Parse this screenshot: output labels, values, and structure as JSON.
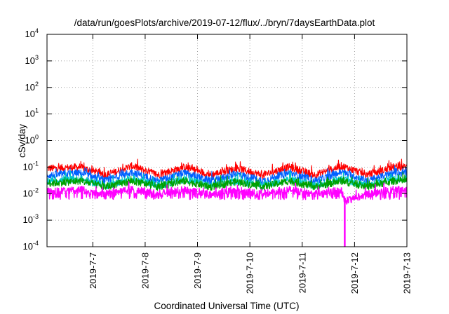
{
  "chart_data": {
    "type": "line",
    "title": "/data/run/goesPlots/archive/2019-07-12/flux/../bryn/7daysEarthData.plot",
    "xlabel": "Coordinated Universal Time (UTC)",
    "ylabel": "cSv/day",
    "y_scale": "log",
    "ylim": [
      0.0001,
      10000
    ],
    "xlim": [
      "2019-07-06T03:00",
      "2019-07-13T00:00"
    ],
    "y_ticks": [
      {
        "base": "10",
        "exp": "-4",
        "value": 0.0001
      },
      {
        "base": "10",
        "exp": "-3",
        "value": 0.001
      },
      {
        "base": "10",
        "exp": "-2",
        "value": 0.01
      },
      {
        "base": "10",
        "exp": "-1",
        "value": 0.1
      },
      {
        "base": "10",
        "exp": "0",
        "value": 1
      },
      {
        "base": "10",
        "exp": "1",
        "value": 10
      },
      {
        "base": "10",
        "exp": "2",
        "value": 100
      },
      {
        "base": "10",
        "exp": "3",
        "value": 1000
      },
      {
        "base": "10",
        "exp": "4",
        "value": 10000
      }
    ],
    "x_ticks": [
      {
        "label": "2019-7-7",
        "date": "2019-07-07"
      },
      {
        "label": "2019-7-8",
        "date": "2019-07-08"
      },
      {
        "label": "2019-7-9",
        "date": "2019-07-09"
      },
      {
        "label": "2019-7-10",
        "date": "2019-07-10"
      },
      {
        "label": "2019-7-11",
        "date": "2019-07-11"
      },
      {
        "label": "2019-7-12",
        "date": "2019-07-12"
      },
      {
        "label": "2019-7-13",
        "date": "2019-07-13"
      }
    ],
    "grid": true,
    "grid_style": "dotted",
    "series": [
      {
        "color": "#ff0000",
        "x": [
          "2019-07-06T06:00",
          "2019-07-06T18:00",
          "2019-07-07T06:00",
          "2019-07-07T18:00",
          "2019-07-08T06:00",
          "2019-07-08T18:00",
          "2019-07-09T06:00",
          "2019-07-09T18:00",
          "2019-07-10T06:00",
          "2019-07-10T18:00",
          "2019-07-11T06:00",
          "2019-07-11T18:00",
          "2019-07-12T06:00",
          "2019-07-12T18:00"
        ],
        "values": [
          0.09,
          0.1,
          0.05,
          0.11,
          0.05,
          0.1,
          0.05,
          0.09,
          0.05,
          0.1,
          0.05,
          0.11,
          0.05,
          0.1
        ]
      },
      {
        "color": "#0060ff",
        "x": [
          "2019-07-06T06:00",
          "2019-07-06T18:00",
          "2019-07-07T06:00",
          "2019-07-07T18:00",
          "2019-07-08T06:00",
          "2019-07-08T18:00",
          "2019-07-09T06:00",
          "2019-07-09T18:00",
          "2019-07-10T06:00",
          "2019-07-10T18:00",
          "2019-07-11T06:00",
          "2019-07-11T18:00",
          "2019-07-12T06:00",
          "2019-07-12T18:00"
        ],
        "values": [
          0.05,
          0.06,
          0.03,
          0.065,
          0.03,
          0.06,
          0.03,
          0.055,
          0.03,
          0.06,
          0.03,
          0.065,
          0.03,
          0.06
        ]
      },
      {
        "color": "#00c8c8",
        "x": [
          "2019-07-06T06:00",
          "2019-07-06T18:00",
          "2019-07-07T06:00",
          "2019-07-07T18:00",
          "2019-07-08T06:00",
          "2019-07-08T18:00",
          "2019-07-09T06:00",
          "2019-07-09T18:00",
          "2019-07-10T06:00",
          "2019-07-10T18:00",
          "2019-07-11T06:00",
          "2019-07-11T18:00",
          "2019-07-12T06:00",
          "2019-07-12T18:00"
        ],
        "values": [
          0.03,
          0.035,
          0.02,
          0.035,
          0.02,
          0.035,
          0.02,
          0.03,
          0.02,
          0.035,
          0.02,
          0.035,
          0.02,
          0.035
        ]
      },
      {
        "color": "#00a000",
        "x": [
          "2019-07-06T06:00",
          "2019-07-06T18:00",
          "2019-07-07T06:00",
          "2019-07-07T18:00",
          "2019-07-08T06:00",
          "2019-07-08T18:00",
          "2019-07-09T06:00",
          "2019-07-09T18:00",
          "2019-07-10T06:00",
          "2019-07-10T18:00",
          "2019-07-11T06:00",
          "2019-07-11T18:00",
          "2019-07-12T06:00",
          "2019-07-12T18:00"
        ],
        "values": [
          0.025,
          0.03,
          0.018,
          0.03,
          0.018,
          0.03,
          0.018,
          0.028,
          0.018,
          0.03,
          0.018,
          0.03,
          0.018,
          0.03
        ]
      },
      {
        "color": "#ff00ff",
        "x": [
          "2019-07-06T06:00",
          "2019-07-06T18:00",
          "2019-07-07T06:00",
          "2019-07-07T18:00",
          "2019-07-08T06:00",
          "2019-07-08T18:00",
          "2019-07-09T06:00",
          "2019-07-09T18:00",
          "2019-07-10T06:00",
          "2019-07-10T18:00",
          "2019-07-11T06:00",
          "2019-07-11T18:00",
          "2019-07-11T19:30",
          "2019-07-12T06:00",
          "2019-07-12T18:00"
        ],
        "values": [
          0.012,
          0.014,
          0.01,
          0.014,
          0.01,
          0.014,
          0.01,
          0.013,
          0.01,
          0.014,
          0.01,
          0.013,
          0.0001,
          0.01,
          0.014
        ],
        "low_envelope": 0.006
      }
    ]
  }
}
